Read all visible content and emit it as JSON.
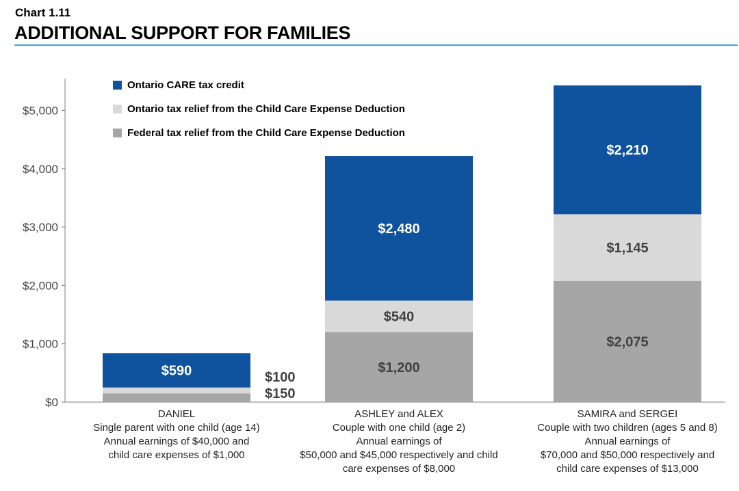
{
  "header": {
    "chart_number": "Chart 1.11",
    "title": "ADDITIONAL SUPPORT FOR FAMILIES"
  },
  "colors": {
    "care": "#0f539e",
    "ontario": "#d9d9d9",
    "federal": "#a6a6a6",
    "title_rule": "#3aa6cc"
  },
  "chart_data": {
    "type": "bar",
    "stacked": true,
    "categories": [
      "DANIEL",
      "ASHLEY and ALEX",
      "SAMIRA and SERGEI"
    ],
    "category_descriptions": [
      [
        "Single parent with one child (age 14)",
        "Annual earnings of $40,000 and",
        "child care expenses of $1,000"
      ],
      [
        "Couple with one child (age 2)",
        "Annual earnings of",
        "$50,000 and $45,000 respectively and child",
        "care expenses of $8,000"
      ],
      [
        "Couple with two children (ages 5 and 8)",
        "Annual earnings of",
        "$70,000 and $50,000 respectively and",
        "child care expenses of $13,000"
      ]
    ],
    "series": [
      {
        "name": "Federal tax relief from the Child Care Expense Deduction",
        "values": [
          150,
          1200,
          2075
        ],
        "labels": [
          "$150",
          "$1,200",
          "$2,075"
        ],
        "color": "#a6a6a6"
      },
      {
        "name": "Ontario tax relief from the Child Care Expense Deduction",
        "values": [
          100,
          540,
          1145
        ],
        "labels": [
          "$100",
          "$540",
          "$1,145"
        ],
        "color": "#d9d9d9"
      },
      {
        "name": "Ontario CARE tax credit",
        "values": [
          590,
          2480,
          2210
        ],
        "labels": [
          "$590",
          "$2,480",
          "$2,210"
        ],
        "color": "#0f539e"
      }
    ],
    "legend_order": [
      2,
      1,
      0
    ],
    "legend_position": "top-left",
    "y_ticks": [
      0,
      1000,
      2000,
      3000,
      4000,
      5000
    ],
    "y_tick_labels": [
      "$0",
      "$1,000",
      "$2,000",
      "$3,000",
      "$4,000",
      "$5,000"
    ],
    "ylim": [
      0,
      5500
    ],
    "grid": false
  }
}
